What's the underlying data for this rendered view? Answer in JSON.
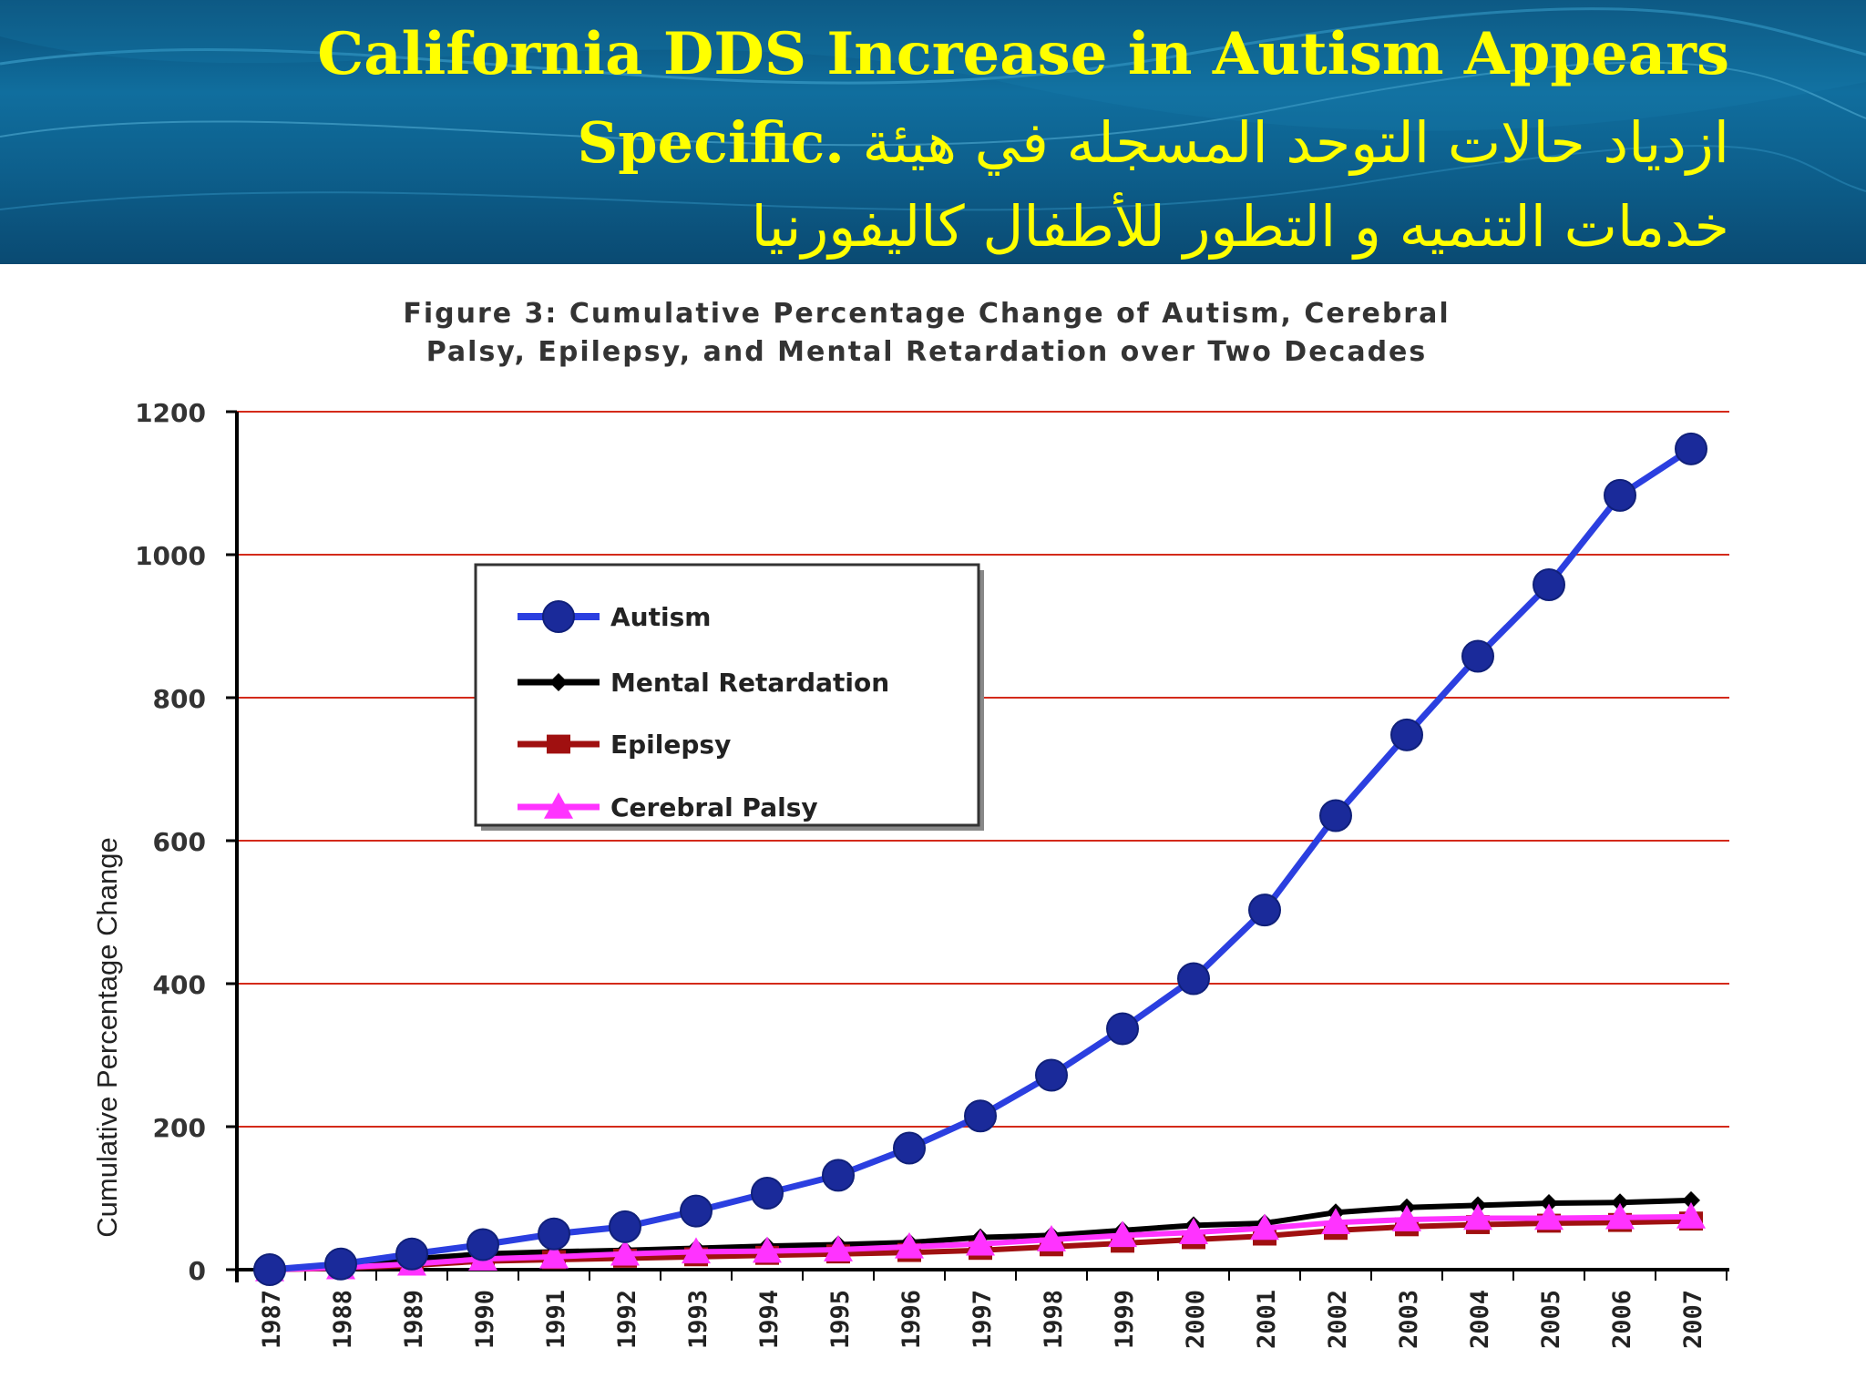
{
  "slide": {
    "title_line1": "California DDS Increase in Autism Appears",
    "title_line2_en": "Specific.",
    "title_line2_ar": "ازدياد حالات التوحد المسجله في هيئة",
    "title_line3_ar": "خدمات التنميه و التطور للأطفال كاليفورنيا",
    "title_color": "#ffff00"
  },
  "chart_data": {
    "type": "line",
    "title_line1": "Figure 3: Cumulative Percentage Change of Autism, Cerebral",
    "title_line2": "Palsy, Epilepsy, and Mental Retardation over Two Decades",
    "ylabel": "Cumulative Percentage Change",
    "xlabel": "",
    "ylim": [
      0,
      1200
    ],
    "yticks": [
      "0",
      "200",
      "400",
      "600",
      "800",
      "1000",
      "1200"
    ],
    "grid": true,
    "legend_position": "upper-left",
    "categories": [
      "1987",
      "1988",
      "1989",
      "1990",
      "1991",
      "1992",
      "1993",
      "1994",
      "1995",
      "1996",
      "1997",
      "1998",
      "1999",
      "2000",
      "2001",
      "2002",
      "2003",
      "2004",
      "2005",
      "2006",
      "2007"
    ],
    "series": [
      {
        "name": "Autism",
        "color": "#2b3fe0",
        "marker": "circle",
        "values": [
          0,
          8,
          22,
          35,
          50,
          60,
          82,
          107,
          132,
          170,
          215,
          272,
          337,
          407,
          503,
          635,
          748,
          858,
          958,
          1083,
          1148
        ]
      },
      {
        "name": "Mental Retardation",
        "color": "#000000",
        "marker": "diamond",
        "values": [
          0,
          8,
          15,
          22,
          25,
          27,
          30,
          33,
          35,
          38,
          45,
          48,
          55,
          62,
          65,
          80,
          87,
          90,
          93,
          94,
          97
        ]
      },
      {
        "name": "Epilepsy",
        "color": "#a01010",
        "marker": "square",
        "values": [
          0,
          2,
          6,
          12,
          14,
          16,
          18,
          20,
          22,
          24,
          27,
          32,
          37,
          42,
          47,
          55,
          60,
          63,
          65,
          66,
          68
        ]
      },
      {
        "name": "Cerebral Palsy",
        "color": "#ff33ff",
        "marker": "triangle",
        "values": [
          0,
          3,
          8,
          15,
          18,
          22,
          25,
          26,
          28,
          32,
          36,
          42,
          48,
          52,
          58,
          66,
          70,
          72,
          72,
          73,
          74
        ]
      }
    ]
  }
}
